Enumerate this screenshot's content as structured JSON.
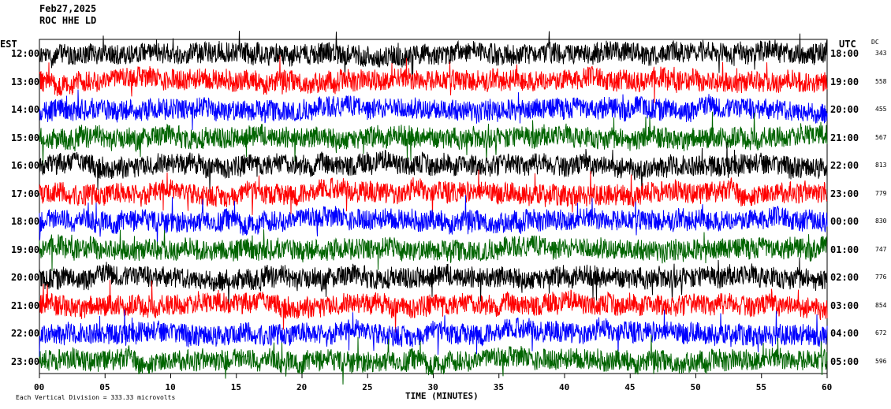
{
  "header": {
    "date": "Feb27,2025",
    "station": "ROC HHE LD",
    "left_zone": "EST",
    "right_zone": "UTC",
    "dc_label": "DC"
  },
  "footer": {
    "xlabel": "TIME (MINUTES)",
    "scale_note": "Each Vertical Division = 333.33 microvolts"
  },
  "colors": {
    "black": "#000000",
    "red": "#ff0000",
    "blue": "#0000ff",
    "green": "#006400"
  },
  "chart_data": {
    "type": "line",
    "title": "Feb27,2025",
    "xlabel": "TIME (MINUTES)",
    "xlim": [
      0,
      60
    ],
    "x_ticks": [
      "00",
      "05",
      "10",
      "15",
      "20",
      "25",
      "30",
      "35",
      "40",
      "45",
      "50",
      "55",
      "60"
    ],
    "rows": [
      {
        "local": "12:00",
        "utc": "18:00",
        "dc": "343",
        "color": "#000000"
      },
      {
        "local": "13:00",
        "utc": "19:00",
        "dc": "558",
        "color": "#ff0000"
      },
      {
        "local": "14:00",
        "utc": "20:00",
        "dc": "455",
        "color": "#0000ff"
      },
      {
        "local": "15:00",
        "utc": "21:00",
        "dc": "567",
        "color": "#006400"
      },
      {
        "local": "16:00",
        "utc": "22:00",
        "dc": "813",
        "color": "#000000"
      },
      {
        "local": "17:00",
        "utc": "23:00",
        "dc": "779",
        "color": "#ff0000"
      },
      {
        "local": "18:00",
        "utc": "00:00",
        "dc": "830",
        "color": "#0000ff"
      },
      {
        "local": "19:00",
        "utc": "01:00",
        "dc": "747",
        "color": "#006400"
      },
      {
        "local": "20:00",
        "utc": "02:00",
        "dc": "776",
        "color": "#000000"
      },
      {
        "local": "21:00",
        "utc": "03:00",
        "dc": "854",
        "color": "#ff0000"
      },
      {
        "local": "22:00",
        "utc": "04:00",
        "dc": "672",
        "color": "#0000ff"
      },
      {
        "local": "23:00",
        "utc": "05:00",
        "dc": "596",
        "color": "#006400"
      }
    ]
  }
}
